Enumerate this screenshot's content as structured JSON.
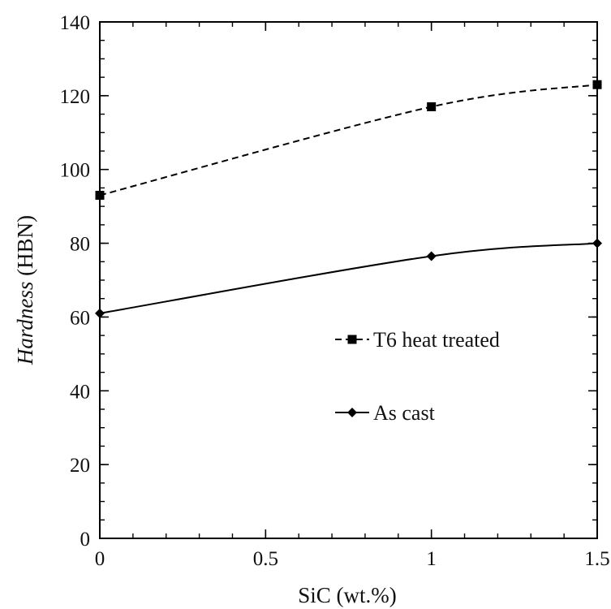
{
  "chart_data": {
    "type": "line",
    "title": "",
    "xlabel": "SiC (wt.%)",
    "ylabel_italic": "Hardness",
    "ylabel_unit": "(HBN)",
    "xlim": [
      0,
      1.5
    ],
    "ylim": [
      0,
      140
    ],
    "x_ticks": [
      0,
      0.5,
      1,
      1.5
    ],
    "x_tick_labels": [
      "0",
      "0.5",
      "1",
      "1.5"
    ],
    "y_ticks": [
      0,
      20,
      40,
      60,
      80,
      100,
      120,
      140
    ],
    "y_tick_labels": [
      "0",
      "20",
      "40",
      "60",
      "80",
      "100",
      "120",
      "140"
    ],
    "grid": false,
    "legend_position": "center-right",
    "series": [
      {
        "name": "T6 heat treated",
        "line_style": "dashed",
        "marker": "square",
        "color": "#000000",
        "x": [
          0,
          1,
          1.5
        ],
        "y": [
          93,
          117,
          123
        ]
      },
      {
        "name": "As cast",
        "line_style": "solid",
        "marker": "diamond",
        "color": "#000000",
        "x": [
          0,
          1,
          1.5
        ],
        "y": [
          61,
          76.5,
          80
        ]
      }
    ]
  }
}
